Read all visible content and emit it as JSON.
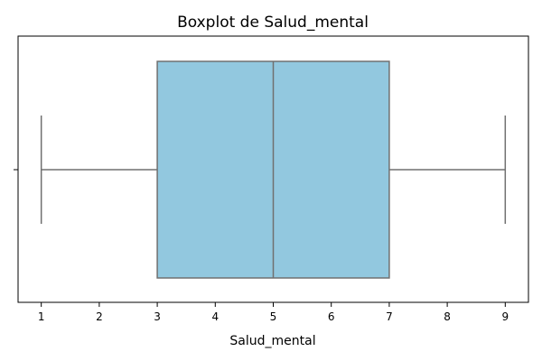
{
  "chart_data": {
    "type": "boxplot",
    "title": "Boxplot de Salud_mental",
    "xlabel": "Salud_mental",
    "ylabel": "",
    "orientation": "horizontal",
    "xlim": [
      0.6,
      9.4
    ],
    "xticks": [
      1,
      2,
      3,
      4,
      5,
      6,
      7,
      8,
      9
    ],
    "box": {
      "whisker_low": 1,
      "q1": 3,
      "median": 5,
      "q3": 7,
      "whisker_high": 9
    },
    "grid": false,
    "colors": {
      "box_fill": "#92c8df",
      "box_edge": "#707070",
      "axis": "#000000"
    }
  }
}
